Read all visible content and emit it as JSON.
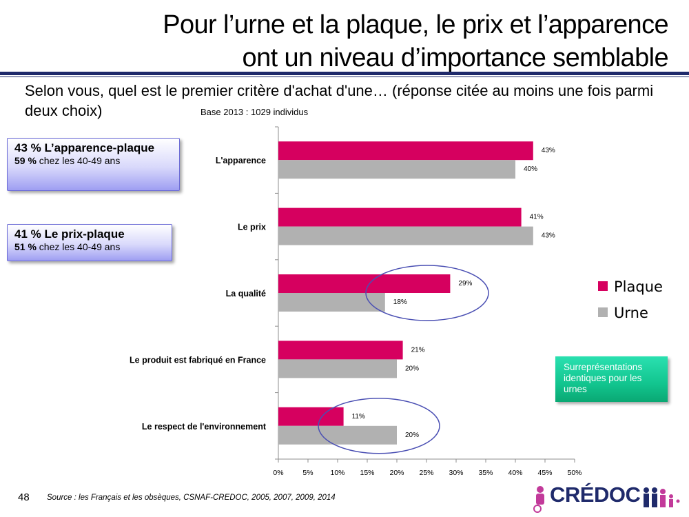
{
  "header": {
    "title_line1": "Pour l’urne et la plaque, le prix et l’apparence",
    "title_line2": "ont un niveau d’importance semblable"
  },
  "question": "Selon vous, quel est le premier critère d'achat d'une… (réponse citée au moins une fois parmi deux choix)",
  "base": "Base 2013 : 1029 individus",
  "callouts": [
    {
      "main": "43 % L’apparence-plaque",
      "pct": "59 %",
      "rest": " chez les 40-49 ans"
    },
    {
      "main": "41 % Le prix-plaque",
      "pct": "51 %",
      "rest": " chez les 40-49 ans"
    }
  ],
  "note": "Surreprésentations identiques pour les urnes",
  "footer": {
    "page_number": "48",
    "source": "Source : les Français et les obsèques, CSNAF-CREDOC, 2005, 2007, 2009, 2014"
  },
  "logo": {
    "text": "CRÉDOC"
  },
  "colors": {
    "plaque": "#d6005f",
    "urne": "#b1b1b1",
    "accent_navy": "#1f2a6b",
    "circle": "#4a4fb3",
    "note_green": "#12c58f"
  },
  "chart_data": {
    "type": "bar",
    "orientation": "horizontal",
    "categories": [
      "L'apparence",
      "Le prix",
      "La qualité",
      "Le produit est fabriqué en France",
      "Le respect de l'environnement"
    ],
    "series": [
      {
        "name": "Plaque",
        "values": [
          43,
          41,
          29,
          21,
          11
        ],
        "labels": [
          "43%",
          "41%",
          "29%",
          "21%",
          "11%"
        ]
      },
      {
        "name": "Urne",
        "values": [
          40,
          43,
          18,
          20,
          20
        ],
        "labels": [
          "40%",
          "43%",
          "18%",
          "20%",
          "20%"
        ]
      }
    ],
    "xlim": [
      0,
      50
    ],
    "xticks": [
      0,
      5,
      10,
      15,
      20,
      25,
      30,
      35,
      40,
      45,
      50
    ],
    "xtick_labels": [
      "0%",
      "5%",
      "10%",
      "15%",
      "20%",
      "25%",
      "30%",
      "35%",
      "40%",
      "45%",
      "50%"
    ],
    "grid": false,
    "legend_position": "right",
    "highlighted_categories": [
      "La qualité",
      "Le respect de l'environnement"
    ]
  }
}
